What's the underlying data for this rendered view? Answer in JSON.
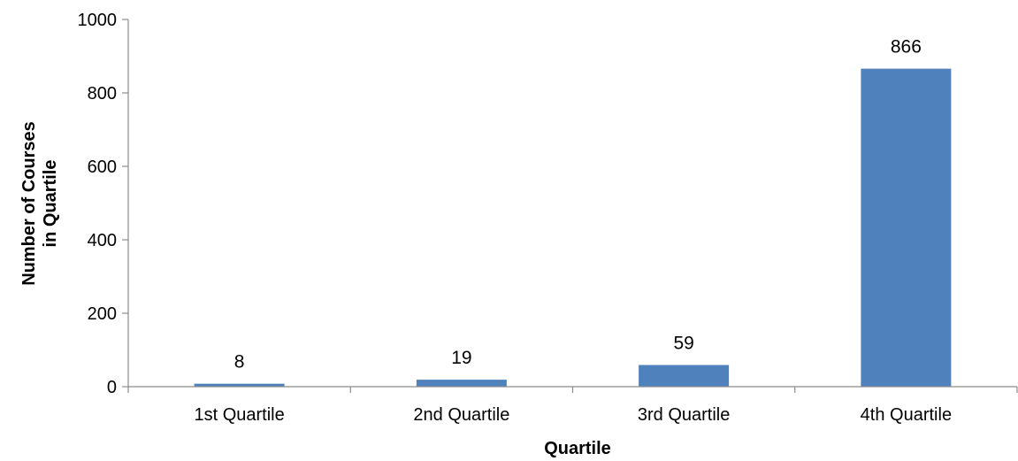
{
  "chart_data": {
    "type": "bar",
    "categories": [
      "1st Quartile",
      "2nd Quartile",
      "3rd Quartile",
      "4th Quartile"
    ],
    "values": [
      8,
      19,
      59,
      866
    ],
    "data_labels": [
      "8",
      "19",
      "59",
      "866"
    ],
    "xlabel": "Quartile",
    "ylabel_lines": [
      "Number of Courses",
      "in Quartile"
    ],
    "ylim": [
      0,
      1000
    ],
    "yticks": [
      0,
      200,
      400,
      600,
      800,
      1000
    ],
    "grid": false,
    "legend": "none",
    "bar_color": "#4f81bd"
  }
}
